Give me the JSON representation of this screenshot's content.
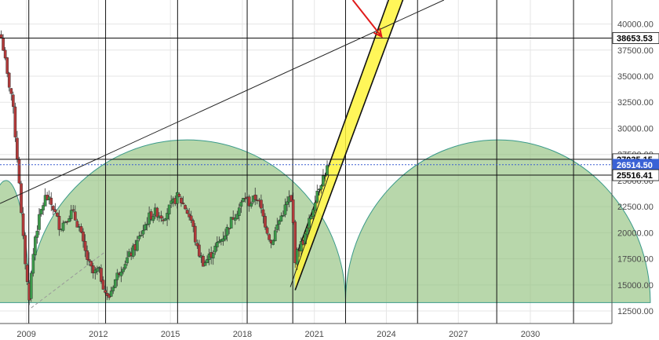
{
  "chart_data": {
    "type": "candlestick",
    "title": "",
    "xlabel": "",
    "ylabel": "",
    "x_ticks": [
      "2009",
      "2012",
      "2015",
      "2018",
      "2021",
      "2024",
      "2027",
      "2030"
    ],
    "y_ticks": [
      "12500.00",
      "15000.00",
      "17500.00",
      "20000.00",
      "22500.00",
      "25000.00",
      "27500.00",
      "30000.00",
      "32500.00",
      "35000.00",
      "37500.00",
      "40000.00"
    ],
    "y_values": [
      12500,
      15000,
      17500,
      20000,
      22500,
      25000,
      27500,
      30000,
      32500,
      35000,
      37500,
      40000
    ],
    "ylim": [
      11300,
      42300
    ],
    "xlim": [
      2007.9,
      2033.4
    ],
    "grid": true,
    "price_labels": [
      {
        "label": "38653.53",
        "value": 38653.53,
        "style": "dark"
      },
      {
        "label": "27035.15",
        "value": 27035.15,
        "style": "dark"
      },
      {
        "label": "26514.50",
        "value": 26514.5,
        "style": "blue"
      },
      {
        "label": "25516.41",
        "value": 25516.41,
        "style": "dark"
      }
    ],
    "series_path": [
      [
        2007.95,
        38700
      ],
      [
        2008.05,
        37500
      ],
      [
        2008.2,
        35000
      ],
      [
        2008.4,
        33000
      ],
      [
        2008.55,
        29000
      ],
      [
        2008.7,
        25000
      ],
      [
        2008.8,
        21000
      ],
      [
        2008.9,
        18500
      ],
      [
        2009.0,
        16000
      ],
      [
        2009.1,
        13500
      ],
      [
        2009.2,
        16000
      ],
      [
        2009.35,
        19500
      ],
      [
        2009.6,
        22000
      ],
      [
        2009.8,
        23500
      ],
      [
        2010.1,
        22500
      ],
      [
        2010.4,
        20500
      ],
      [
        2010.7,
        21500
      ],
      [
        2010.9,
        22000
      ],
      [
        2011.2,
        20500
      ],
      [
        2011.4,
        18500
      ],
      [
        2011.6,
        17000
      ],
      [
        2011.8,
        16000
      ],
      [
        2012.0,
        16500
      ],
      [
        2012.2,
        15000
      ],
      [
        2012.4,
        13500
      ],
      [
        2012.6,
        15000
      ],
      [
        2012.9,
        16500
      ],
      [
        2013.2,
        17500
      ],
      [
        2013.5,
        18500
      ],
      [
        2013.8,
        20000
      ],
      [
        2014.1,
        21500
      ],
      [
        2014.4,
        22000
      ],
      [
        2014.7,
        21500
      ],
      [
        2015.0,
        22500
      ],
      [
        2015.3,
        23500
      ],
      [
        2015.6,
        22500
      ],
      [
        2015.9,
        21000
      ],
      [
        2016.1,
        18500
      ],
      [
        2016.4,
        17000
      ],
      [
        2016.7,
        18000
      ],
      [
        2017.0,
        19000
      ],
      [
        2017.3,
        20000
      ],
      [
        2017.6,
        21500
      ],
      [
        2017.9,
        22500
      ],
      [
        2018.1,
        23500
      ],
      [
        2018.3,
        22800
      ],
      [
        2018.6,
        23500
      ],
      [
        2018.8,
        22000
      ],
      [
        2019.0,
        20500
      ],
      [
        2019.2,
        19000
      ],
      [
        2019.5,
        21000
      ],
      [
        2019.8,
        22500
      ],
      [
        2020.0,
        23500
      ],
      [
        2020.1,
        21500
      ],
      [
        2020.2,
        17500
      ],
      [
        2020.35,
        18500
      ],
      [
        2020.6,
        19500
      ],
      [
        2020.9,
        22000
      ],
      [
        2021.1,
        24000
      ],
      [
        2021.3,
        25000
      ],
      [
        2021.5,
        26000
      ],
      [
        2021.6,
        26600
      ]
    ],
    "annotations": {
      "cycle_arcs": [
        {
          "start": 2007.2,
          "end": 2009.1,
          "peak": 25000
        },
        {
          "start": 2009.1,
          "end": 2022.3,
          "peak": 28900
        },
        {
          "start": 2022.3,
          "end": 2035.0,
          "peak": 28900
        }
      ],
      "cycle_floor": 13300,
      "cycle_verticals": [
        2009.1,
        2012.3,
        2015.3,
        2018.2,
        2020.1,
        2022.3,
        2025.3,
        2028.6,
        2031.8
      ],
      "channel": {
        "lower": [
          [
            2020.2,
            14500
          ],
          [
            2024.8,
            43000
          ]
        ],
        "upper": [
          [
            2020.2,
            17500
          ],
          [
            2024.2,
            43000
          ]
        ]
      },
      "trend_lines": [
        {
          "from": [
            2007.9,
            22800
          ],
          "to": [
            2026.4,
            42300
          ],
          "style": "solid"
        },
        {
          "from": [
            2009.2,
            12800
          ],
          "to": [
            2012.3,
            18200
          ],
          "style": "dashed"
        },
        {
          "from": [
            2020.0,
            14800
          ],
          "to": [
            2021.6,
            25500
          ],
          "style": "solid"
        }
      ],
      "target_arrow": {
        "from": [
          2022.6,
          42300
        ],
        "to": [
          2023.8,
          38800
        ]
      },
      "target_point": [
        2023.8,
        38653.53
      ]
    }
  }
}
